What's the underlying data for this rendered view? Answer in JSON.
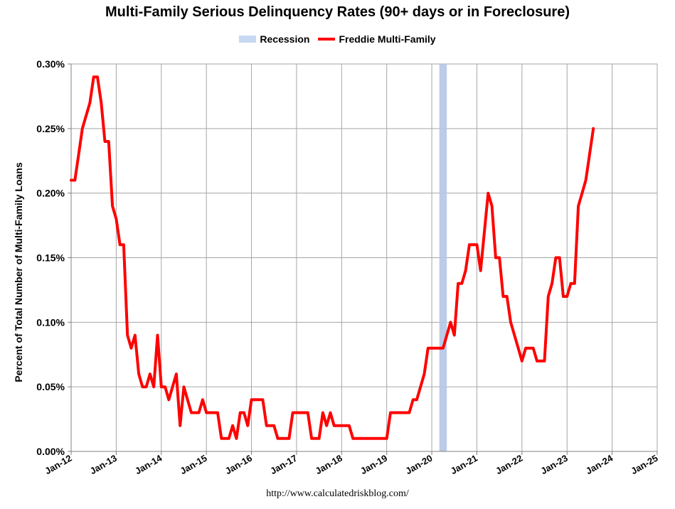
{
  "chart_data": {
    "type": "line",
    "title": "Multi-Family Serious Delinquency Rates (90+ days or in Foreclosure)",
    "ylabel": "Percent of Total Number of Multi-Family Loans",
    "xlabel": "",
    "source": "http://www.calculatedriskblog.com/",
    "ylim": [
      0,
      0.3
    ],
    "xlim": [
      "2012-01",
      "2025-01"
    ],
    "grid": true,
    "legend_placement": "top-center",
    "y_ticks": [
      "0.00%",
      "0.05%",
      "0.10%",
      "0.15%",
      "0.20%",
      "0.25%",
      "0.30%"
    ],
    "x_ticks": [
      "Jan-12",
      "Jan-13",
      "Jan-14",
      "Jan-15",
      "Jan-16",
      "Jan-17",
      "Jan-18",
      "Jan-19",
      "Jan-20",
      "Jan-21",
      "Jan-22",
      "Jan-23",
      "Jan-24",
      "Jan-25"
    ],
    "recessions": [
      {
        "name": "Recession",
        "start": "2020-03",
        "end": "2020-04",
        "color": "#b4c7e7"
      }
    ],
    "series": [
      {
        "name": "Freddie Multi-Family",
        "color": "#ff0000",
        "points": [
          [
            "2012-01",
            0.21
          ],
          [
            "2012-02",
            0.21
          ],
          [
            "2012-03",
            0.23
          ],
          [
            "2012-04",
            0.25
          ],
          [
            "2012-05",
            0.26
          ],
          [
            "2012-06",
            0.27
          ],
          [
            "2012-07",
            0.29
          ],
          [
            "2012-08",
            0.29
          ],
          [
            "2012-09",
            0.27
          ],
          [
            "2012-10",
            0.24
          ],
          [
            "2012-11",
            0.24
          ],
          [
            "2012-12",
            0.19
          ],
          [
            "2013-01",
            0.18
          ],
          [
            "2013-02",
            0.16
          ],
          [
            "2013-03",
            0.16
          ],
          [
            "2013-04",
            0.09
          ],
          [
            "2013-05",
            0.08
          ],
          [
            "2013-06",
            0.09
          ],
          [
            "2013-07",
            0.06
          ],
          [
            "2013-08",
            0.05
          ],
          [
            "2013-09",
            0.05
          ],
          [
            "2013-10",
            0.06
          ],
          [
            "2013-11",
            0.05
          ],
          [
            "2013-12",
            0.09
          ],
          [
            "2014-01",
            0.05
          ],
          [
            "2014-02",
            0.05
          ],
          [
            "2014-03",
            0.04
          ],
          [
            "2014-04",
            0.05
          ],
          [
            "2014-05",
            0.06
          ],
          [
            "2014-06",
            0.02
          ],
          [
            "2014-07",
            0.05
          ],
          [
            "2014-08",
            0.04
          ],
          [
            "2014-09",
            0.03
          ],
          [
            "2014-10",
            0.03
          ],
          [
            "2014-11",
            0.03
          ],
          [
            "2014-12",
            0.04
          ],
          [
            "2015-01",
            0.03
          ],
          [
            "2015-02",
            0.03
          ],
          [
            "2015-03",
            0.03
          ],
          [
            "2015-04",
            0.03
          ],
          [
            "2015-05",
            0.01
          ],
          [
            "2015-06",
            0.01
          ],
          [
            "2015-07",
            0.01
          ],
          [
            "2015-08",
            0.02
          ],
          [
            "2015-09",
            0.01
          ],
          [
            "2015-10",
            0.03
          ],
          [
            "2015-11",
            0.03
          ],
          [
            "2015-12",
            0.02
          ],
          [
            "2016-01",
            0.04
          ],
          [
            "2016-02",
            0.04
          ],
          [
            "2016-03",
            0.04
          ],
          [
            "2016-04",
            0.04
          ],
          [
            "2016-05",
            0.02
          ],
          [
            "2016-06",
            0.02
          ],
          [
            "2016-07",
            0.02
          ],
          [
            "2016-08",
            0.01
          ],
          [
            "2016-09",
            0.01
          ],
          [
            "2016-10",
            0.01
          ],
          [
            "2016-11",
            0.01
          ],
          [
            "2016-12",
            0.03
          ],
          [
            "2017-01",
            0.03
          ],
          [
            "2017-02",
            0.03
          ],
          [
            "2017-03",
            0.03
          ],
          [
            "2017-04",
            0.03
          ],
          [
            "2017-05",
            0.01
          ],
          [
            "2017-06",
            0.01
          ],
          [
            "2017-07",
            0.01
          ],
          [
            "2017-08",
            0.03
          ],
          [
            "2017-09",
            0.02
          ],
          [
            "2017-10",
            0.03
          ],
          [
            "2017-11",
            0.02
          ],
          [
            "2017-12",
            0.02
          ],
          [
            "2018-01",
            0.02
          ],
          [
            "2018-02",
            0.02
          ],
          [
            "2018-03",
            0.02
          ],
          [
            "2018-04",
            0.01
          ],
          [
            "2018-05",
            0.01
          ],
          [
            "2018-06",
            0.01
          ],
          [
            "2018-07",
            0.01
          ],
          [
            "2018-08",
            0.01
          ],
          [
            "2018-09",
            0.01
          ],
          [
            "2018-10",
            0.01
          ],
          [
            "2018-11",
            0.01
          ],
          [
            "2018-12",
            0.01
          ],
          [
            "2019-01",
            0.01
          ],
          [
            "2019-02",
            0.03
          ],
          [
            "2019-03",
            0.03
          ],
          [
            "2019-04",
            0.03
          ],
          [
            "2019-05",
            0.03
          ],
          [
            "2019-06",
            0.03
          ],
          [
            "2019-07",
            0.03
          ],
          [
            "2019-08",
            0.04
          ],
          [
            "2019-09",
            0.04
          ],
          [
            "2019-10",
            0.05
          ],
          [
            "2019-11",
            0.06
          ],
          [
            "2019-12",
            0.08
          ],
          [
            "2020-01",
            0.08
          ],
          [
            "2020-02",
            0.08
          ],
          [
            "2020-03",
            0.08
          ],
          [
            "2020-04",
            0.08
          ],
          [
            "2020-05",
            0.09
          ],
          [
            "2020-06",
            0.1
          ],
          [
            "2020-07",
            0.09
          ],
          [
            "2020-08",
            0.13
          ],
          [
            "2020-09",
            0.13
          ],
          [
            "2020-10",
            0.14
          ],
          [
            "2020-11",
            0.16
          ],
          [
            "2020-12",
            0.16
          ],
          [
            "2021-01",
            0.16
          ],
          [
            "2021-02",
            0.14
          ],
          [
            "2021-03",
            0.17
          ],
          [
            "2021-04",
            0.2
          ],
          [
            "2021-05",
            0.19
          ],
          [
            "2021-06",
            0.15
          ],
          [
            "2021-07",
            0.15
          ],
          [
            "2021-08",
            0.12
          ],
          [
            "2021-09",
            0.12
          ],
          [
            "2021-10",
            0.1
          ],
          [
            "2021-11",
            0.09
          ],
          [
            "2021-12",
            0.08
          ],
          [
            "2022-01",
            0.07
          ],
          [
            "2022-02",
            0.08
          ],
          [
            "2022-03",
            0.08
          ],
          [
            "2022-04",
            0.08
          ],
          [
            "2022-05",
            0.07
          ],
          [
            "2022-06",
            0.07
          ],
          [
            "2022-07",
            0.07
          ],
          [
            "2022-08",
            0.12
          ],
          [
            "2022-09",
            0.13
          ],
          [
            "2022-10",
            0.15
          ],
          [
            "2022-11",
            0.15
          ],
          [
            "2022-12",
            0.12
          ],
          [
            "2023-01",
            0.12
          ],
          [
            "2023-02",
            0.13
          ],
          [
            "2023-03",
            0.13
          ],
          [
            "2023-04",
            0.19
          ],
          [
            "2023-05",
            0.2
          ],
          [
            "2023-06",
            0.21
          ],
          [
            "2023-07",
            0.23
          ],
          [
            "2023-08",
            0.25
          ]
        ]
      }
    ]
  }
}
